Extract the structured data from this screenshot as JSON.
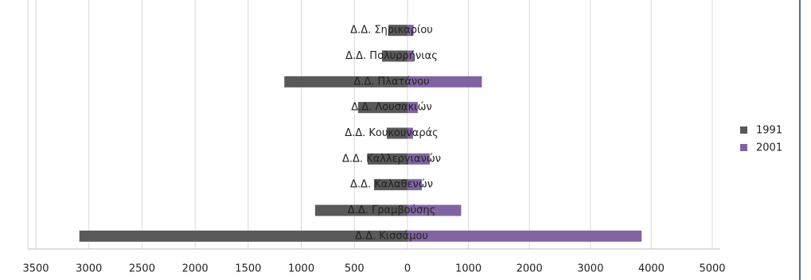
{
  "chart_data": {
    "type": "butterfly",
    "categories": [
      "Δ.Δ. Σηρικαρίου",
      "Δ.Δ. Πολυρρήνιας",
      "Δ.Δ. Πλατάνου",
      "Δ.Δ. Λουσακιών",
      "Δ.Δ. Κουκουναράς",
      "Δ.Δ. Καλλεργιανών",
      "Δ.Δ. Καλαθενών",
      "Δ.Δ. Γραμβούσης",
      "Δ.Δ. Κισσάμου"
    ],
    "series": [
      {
        "name": "1991",
        "color": "#595959",
        "axis": "x",
        "values": [
          180,
          240,
          1160,
          465,
          195,
          375,
          315,
          870,
          3090
        ]
      },
      {
        "name": "2001",
        "color": "#8064a2",
        "axis": "x2",
        "values": [
          100,
          100,
          1220,
          170,
          90,
          365,
          235,
          880,
          3840
        ]
      }
    ],
    "xlim": [
      0,
      3500
    ],
    "xticks": [
      3500,
      3000,
      2500,
      2000,
      1500,
      1000,
      500,
      0
    ],
    "x2lim": [
      0,
      5000
    ],
    "x2ticks": [
      1000,
      2000,
      3000,
      4000,
      5000
    ],
    "grid": true,
    "legend": "right"
  }
}
